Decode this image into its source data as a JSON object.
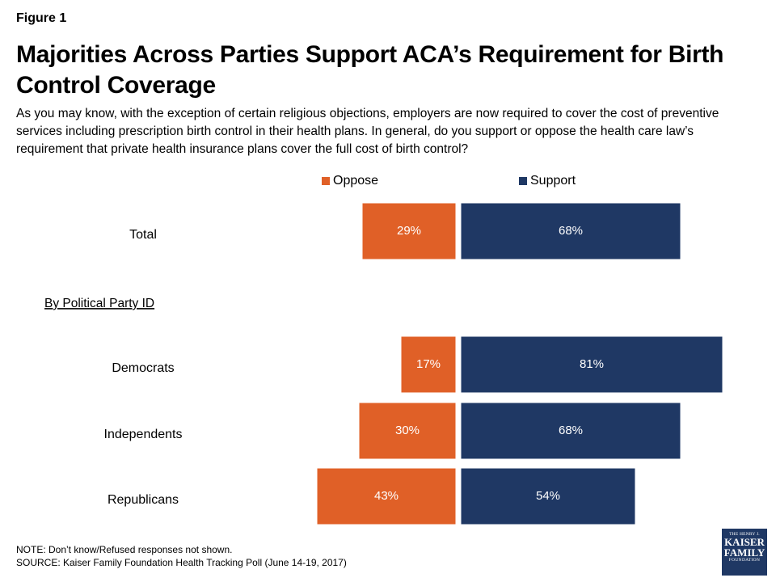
{
  "figure_label": "Figure 1",
  "title": "Majorities Across Parties Support ACA’s Requirement for Birth Control Coverage",
  "subtitle": "As you may know, with the exception of certain religious objections, employers are now required to cover the cost of preventive services including prescription birth control in their health plans. In general, do you support or oppose the health care law’s requirement that private health insurance plans cover the full cost of birth control?",
  "colors": {
    "oppose": "#e06027",
    "support": "#1f3864"
  },
  "chart_data": {
    "type": "bar",
    "orientation": "horizontal-diverging",
    "legend": [
      "Oppose",
      "Support"
    ],
    "legend_position": "top",
    "section_header": "By Political Party ID",
    "categories": [
      "Total",
      "Democrats",
      "Independents",
      "Republicans"
    ],
    "series": [
      {
        "name": "Oppose",
        "values": [
          29,
          17,
          30,
          43
        ],
        "labels": [
          "29%",
          "17%",
          "30%",
          "43%"
        ]
      },
      {
        "name": "Support",
        "values": [
          68,
          81,
          68,
          54
        ],
        "labels": [
          "68%",
          "81%",
          "68%",
          "54%"
        ]
      }
    ],
    "unit": "%"
  },
  "note": "NOTE: Don’t know/Refused responses not shown.",
  "source": "SOURCE: Kaiser Family Foundation Health Tracking Poll (June 14-19, 2017)",
  "logo": {
    "line1": "THE HENRY J.",
    "line2": "KAISER",
    "line3": "FAMILY",
    "line4": "FOUNDATION"
  }
}
